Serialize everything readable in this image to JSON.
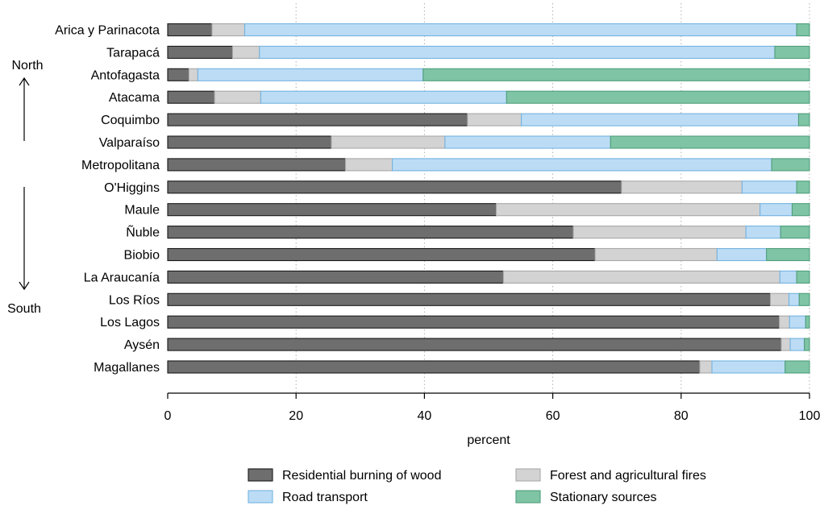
{
  "chart_data": {
    "type": "bar",
    "orientation": "horizontal",
    "stacked": true,
    "xlabel": "percent",
    "xlim": [
      0,
      100
    ],
    "xticks": [
      0,
      20,
      40,
      60,
      80,
      100
    ],
    "grid": "vertical dotted",
    "legend_position": "bottom",
    "categories": [
      "Arica y Parinacota",
      "Tarapacá",
      "Antofagasta",
      "Atacama",
      "Coquimbo",
      "Valparaíso",
      "Metropolitana",
      "O'Higgins",
      "Maule",
      "Ñuble",
      "Biobio",
      "La Araucanía",
      "Los Ríos",
      "Los Lagos",
      "Aysén",
      "Magallanes"
    ],
    "series": [
      {
        "name": "Residential burning of wood",
        "color": "#6e6e6e",
        "stroke": "#1a1a1a",
        "values": [
          6.9,
          10.1,
          3.3,
          7.3,
          46.7,
          25.5,
          27.7,
          70.7,
          51.2,
          63.2,
          66.6,
          52.3,
          93.9,
          95.3,
          95.6,
          82.9
        ]
      },
      {
        "name": "Forest and agricultural fires",
        "color": "#d3d3d3",
        "stroke": "#a8a8a8",
        "values": [
          5.1,
          4.2,
          1.4,
          7.2,
          8.4,
          17.7,
          7.3,
          18.8,
          41.1,
          26.9,
          19.0,
          43.1,
          2.9,
          1.6,
          1.4,
          1.9
        ]
      },
      {
        "name": "Road transport",
        "color": "#bcdcf5",
        "stroke": "#74b3e0",
        "values": [
          86.0,
          80.3,
          35.1,
          38.3,
          43.2,
          25.8,
          59.1,
          8.5,
          5.0,
          5.4,
          7.7,
          2.6,
          1.6,
          2.5,
          2.2,
          11.4
        ]
      },
      {
        "name": "Stationary sources",
        "color": "#7ec4a5",
        "stroke": "#4f9e7c",
        "values": [
          2.0,
          5.4,
          60.2,
          47.2,
          1.7,
          31.0,
          5.9,
          2.0,
          2.7,
          4.5,
          6.7,
          2.0,
          1.6,
          0.6,
          0.8,
          3.8
        ]
      }
    ],
    "side_labels": {
      "north": "North",
      "south": "South"
    }
  }
}
